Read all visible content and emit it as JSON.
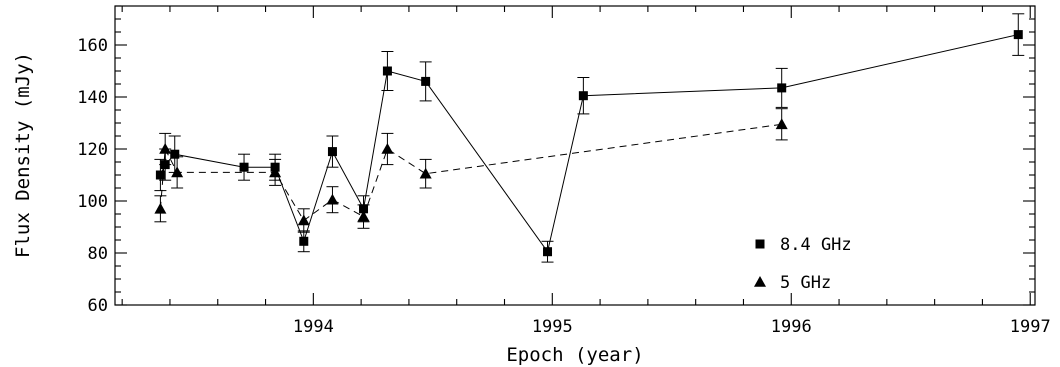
{
  "chart_data": {
    "type": "line",
    "title": "",
    "xlabel": "Epoch (year)",
    "ylabel": "Flux Density (mJy)",
    "xlim": [
      1993.17,
      1997.02
    ],
    "ylim": [
      60,
      175
    ],
    "x_ticks": [
      1994,
      1995,
      1996,
      1997
    ],
    "x_tick_labels": [
      "1994",
      "1995",
      "1996",
      "1997"
    ],
    "y_ticks": [
      60,
      80,
      100,
      120,
      140,
      160
    ],
    "y_tick_labels": [
      "60",
      "80",
      "100",
      "120",
      "140",
      "160"
    ],
    "legend_position": "bottom-right",
    "series": [
      {
        "name": "8.4 GHz",
        "marker": "square",
        "line_style": "solid",
        "color": "#000000",
        "points": [
          {
            "x": 1993.36,
            "y": 110,
            "err": 6
          },
          {
            "x": 1993.38,
            "y": 114,
            "err": 6
          },
          {
            "x": 1993.42,
            "y": 118,
            "err": 7
          },
          {
            "x": 1993.71,
            "y": 113,
            "err": 5
          },
          {
            "x": 1993.84,
            "y": 113,
            "err": 5
          },
          {
            "x": 1993.96,
            "y": 84.5,
            "err": 4
          },
          {
            "x": 1994.08,
            "y": 119,
            "err": 6
          },
          {
            "x": 1994.21,
            "y": 97,
            "err": 5
          },
          {
            "x": 1994.31,
            "y": 150,
            "err": 7.5
          },
          {
            "x": 1994.47,
            "y": 146,
            "err": 7.5
          },
          {
            "x": 1994.98,
            "y": 80.5,
            "err": 4
          },
          {
            "x": 1995.13,
            "y": 140.5,
            "err": 7
          },
          {
            "x": 1995.96,
            "y": 143.5,
            "err": 7.5
          },
          {
            "x": 1996.95,
            "y": 164,
            "err": 8
          }
        ]
      },
      {
        "name": "5 GHz",
        "marker": "triangle",
        "line_style": "dashed",
        "color": "#000000",
        "points": [
          {
            "x": 1993.36,
            "y": 97,
            "err": 5
          },
          {
            "x": 1993.38,
            "y": 120,
            "err": 6
          },
          {
            "x": 1993.43,
            "y": 111,
            "err": 6
          },
          {
            "x": 1993.84,
            "y": 111,
            "err": 5
          },
          {
            "x": 1993.96,
            "y": 92.5,
            "err": 4.5
          },
          {
            "x": 1994.08,
            "y": 100.5,
            "err": 5
          },
          {
            "x": 1994.21,
            "y": 94,
            "err": 4.5
          },
          {
            "x": 1994.31,
            "y": 120,
            "err": 6
          },
          {
            "x": 1994.47,
            "y": 110.5,
            "err": 5.5
          },
          {
            "x": 1995.96,
            "y": 129.5,
            "err": 6
          }
        ]
      }
    ]
  }
}
